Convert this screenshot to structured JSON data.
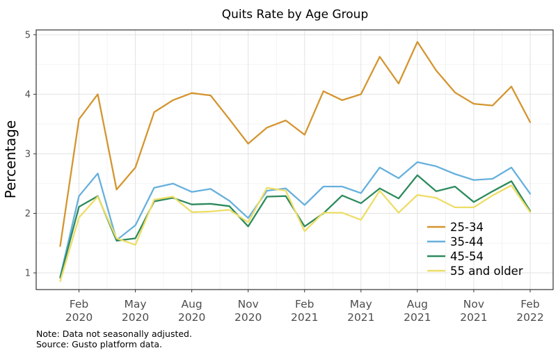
{
  "chart_data": {
    "type": "line",
    "title": "Quits Rate by Age Group",
    "ylabel": "Percentage",
    "xlabel": "",
    "x": [
      "2020-01",
      "2020-02",
      "2020-03",
      "2020-04",
      "2020-05",
      "2020-06",
      "2020-07",
      "2020-08",
      "2020-09",
      "2020-10",
      "2020-11",
      "2020-12",
      "2021-01",
      "2021-02",
      "2021-03",
      "2021-04",
      "2021-05",
      "2021-06",
      "2021-07",
      "2021-08",
      "2021-09",
      "2021-10",
      "2021-11",
      "2021-12",
      "2022-01",
      "2022-02"
    ],
    "series": [
      {
        "name": "25-34",
        "color": "#D4952F",
        "values": [
          1.45,
          3.58,
          4.0,
          2.4,
          2.77,
          3.7,
          3.9,
          4.02,
          3.98,
          3.58,
          3.17,
          3.44,
          3.56,
          3.32,
          4.05,
          3.9,
          4.0,
          4.63,
          4.18,
          4.88,
          4.4,
          4.03,
          3.84,
          3.81,
          4.13,
          3.53
        ]
      },
      {
        "name": "35-44",
        "color": "#66B0DD",
        "values": [
          0.93,
          2.29,
          2.67,
          1.55,
          1.8,
          2.43,
          2.5,
          2.36,
          2.41,
          2.21,
          1.92,
          2.38,
          2.42,
          2.14,
          2.45,
          2.45,
          2.34,
          2.77,
          2.59,
          2.86,
          2.79,
          2.66,
          2.56,
          2.58,
          2.77,
          2.33
        ]
      },
      {
        "name": "45-54",
        "color": "#2C8A5C",
        "values": [
          0.92,
          2.11,
          2.29,
          1.54,
          1.58,
          2.2,
          2.26,
          2.15,
          2.16,
          2.12,
          1.78,
          2.28,
          2.29,
          1.78,
          2.0,
          2.3,
          2.17,
          2.42,
          2.25,
          2.64,
          2.37,
          2.45,
          2.19,
          2.37,
          2.54,
          2.04
        ]
      },
      {
        "name": "55 and older",
        "color": "#EEDD66",
        "values": [
          0.86,
          1.93,
          2.28,
          1.58,
          1.47,
          2.23,
          2.28,
          2.02,
          2.03,
          2.06,
          1.85,
          2.43,
          2.38,
          1.7,
          2.01,
          2.01,
          1.89,
          2.38,
          2.01,
          2.31,
          2.26,
          2.1,
          2.1,
          2.3,
          2.47,
          2.02
        ]
      }
    ],
    "ylim": [
      0.72,
      5.08
    ],
    "yticks": [
      1,
      2,
      3,
      4,
      5
    ],
    "xticks": [
      {
        "x": "2020-02",
        "line1": "Feb",
        "line2": "2020"
      },
      {
        "x": "2020-05",
        "line1": "May",
        "line2": "2020"
      },
      {
        "x": "2020-08",
        "line1": "Aug",
        "line2": "2020"
      },
      {
        "x": "2020-11",
        "line1": "Nov",
        "line2": "2020"
      },
      {
        "x": "2021-02",
        "line1": "Feb",
        "line2": "2021"
      },
      {
        "x": "2021-05",
        "line1": "May",
        "line2": "2021"
      },
      {
        "x": "2021-08",
        "line1": "Aug",
        "line2": "2021"
      },
      {
        "x": "2021-11",
        "line1": "Nov",
        "line2": "2021"
      },
      {
        "x": "2022-02",
        "line1": "Feb",
        "line2": "2022"
      }
    ],
    "grid": true,
    "legend_position": "bottom-right"
  },
  "notes": {
    "line1": "Note: Data not seasonally adjusted.",
    "line2": "Source: Gusto platform data."
  }
}
